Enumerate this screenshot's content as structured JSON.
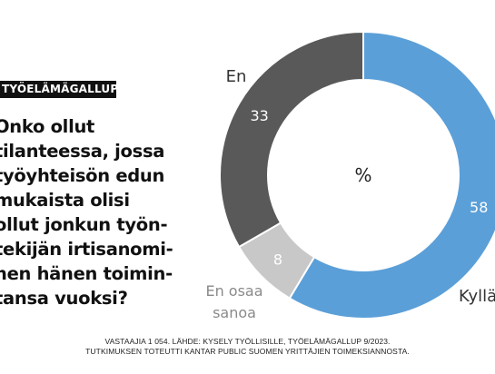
{
  "tag": "TYÖELÄMÄGALLUP",
  "question_lines": [
    "Onko ollut",
    "tilanteessa, jossa",
    "työyhteisön edun",
    "mukaista olisi",
    "ollut jonkun työn-",
    "tekijän irtisanomi-",
    "nen hänen toimin-",
    "tansa vuoksi?"
  ],
  "footer_lines": [
    "VASTAAJIA 1 054. LÄHDE: KYSELY TYÖLLISILLE, TYÖELÄMÄGALLUP 9/2023.",
    "TUTKIMUKSEN TOTEUTTI KANTAR PUBLIC SUOMEN YRITTÄJIEN TOIMEKSIANNOSTA."
  ],
  "chart_data": {
    "type": "pie",
    "donut": true,
    "unit_label": "%",
    "slices": [
      {
        "label": "Kyllä",
        "value": 58,
        "color": "#5b9fd8",
        "label_color": "#ffffff"
      },
      {
        "label": "En osaa sanoa",
        "value": 8,
        "color": "#c8c8c8",
        "label_color": "#ffffff"
      },
      {
        "label": "En",
        "value": 33,
        "color": "#595959",
        "label_color": "#ffffff"
      }
    ],
    "category_labels": {
      "kylla": "Kyllä",
      "en_osaa_line1": "En osaa",
      "en_osaa_line2": "sanoa",
      "en": "En"
    },
    "legend": "none"
  }
}
